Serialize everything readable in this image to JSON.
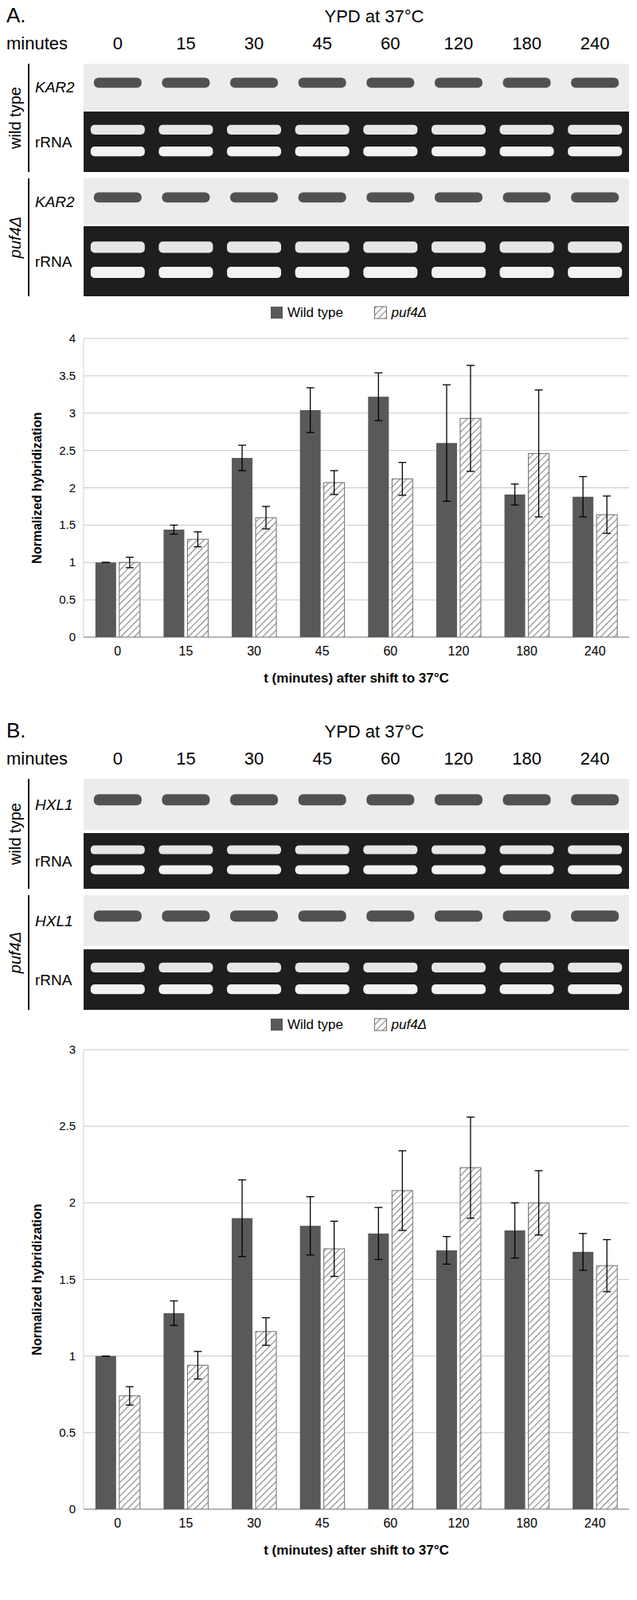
{
  "chart_data": [
    {
      "type": "bar",
      "panel": "A.",
      "blot": {
        "condition": "YPD at 37°C",
        "time_label": "minutes",
        "rows": [
          {
            "strain": "wild type",
            "probe": "KAR2",
            "loading": "rRNA"
          },
          {
            "strain": "puf4Δ",
            "probe": "KAR2",
            "loading": "rRNA"
          }
        ]
      },
      "categories": [
        "0",
        "15",
        "30",
        "45",
        "60",
        "120",
        "180",
        "240"
      ],
      "series": [
        {
          "name": "Wild type",
          "color": "#595959",
          "marker": "solid",
          "values": [
            1,
            1.44,
            2.4,
            3.04,
            3.22,
            2.6,
            1.91,
            1.88
          ],
          "errors": [
            0,
            0.06,
            0.17,
            0.3,
            0.32,
            0.78,
            0.14,
            0.27
          ]
        },
        {
          "name": "puf4Δ",
          "color": "#8c8c8c",
          "marker": "hatch",
          "values": [
            1.0,
            1.31,
            1.6,
            2.07,
            2.12,
            2.93,
            2.46,
            1.64
          ],
          "errors": [
            0.07,
            0.1,
            0.15,
            0.16,
            0.22,
            0.71,
            0.85,
            0.25
          ]
        }
      ],
      "ylim": [
        0,
        4
      ],
      "yticks": [
        0,
        0.5,
        1,
        1.5,
        2,
        2.5,
        3,
        3.5,
        4
      ],
      "x_label": "t (minutes) after shift to 37°C",
      "y_label": "Normalized hybridization",
      "grid": true,
      "legend": "top"
    },
    {
      "type": "bar",
      "panel": "B.",
      "blot": {
        "condition": "YPD at 37°C",
        "time_label": "minutes",
        "rows": [
          {
            "strain": "wild type",
            "probe": "HXL1",
            "loading": "rRNA"
          },
          {
            "strain": "puf4Δ",
            "probe": "HXL1",
            "loading": "rRNA"
          }
        ]
      },
      "categories": [
        "0",
        "15",
        "30",
        "45",
        "60",
        "120",
        "180",
        "240"
      ],
      "series": [
        {
          "name": "Wild type",
          "color": "#595959",
          "marker": "solid",
          "values": [
            1,
            1.28,
            1.9,
            1.85,
            1.8,
            1.69,
            1.82,
            1.68
          ],
          "errors": [
            0,
            0.08,
            0.25,
            0.19,
            0.17,
            0.09,
            0.18,
            0.12
          ]
        },
        {
          "name": "puf4Δ",
          "color": "#8c8c8c",
          "marker": "hatch",
          "values": [
            0.74,
            0.94,
            1.16,
            1.7,
            2.08,
            2.23,
            2.0,
            1.59
          ],
          "errors": [
            0.06,
            0.09,
            0.09,
            0.18,
            0.26,
            0.33,
            0.21,
            0.17
          ]
        }
      ],
      "ylim": [
        0,
        3
      ],
      "yticks": [
        0,
        0.5,
        1,
        1.5,
        2,
        2.5,
        3
      ],
      "x_label": "t (minutes) after shift to 37°C",
      "y_label": "Normalized hybridization",
      "grid": true,
      "legend": "top"
    }
  ]
}
